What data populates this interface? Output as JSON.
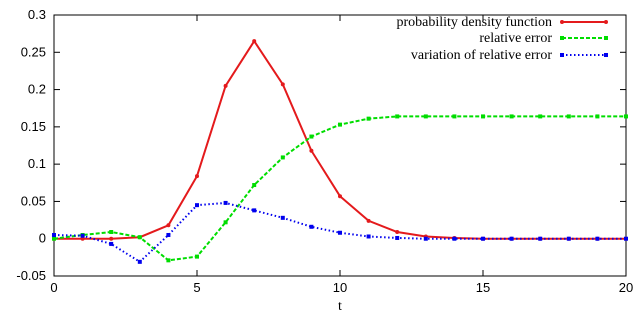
{
  "chart_data": {
    "type": "line",
    "xlabel": "t",
    "ylabel": "",
    "xlim": [
      0,
      20
    ],
    "ylim": [
      -0.05,
      0.3
    ],
    "x_ticks": [
      "0",
      "5",
      "10",
      "15",
      "20"
    ],
    "y_ticks": [
      "-0.05",
      "0",
      "0.05",
      "0.1",
      "0.15",
      "0.2",
      "0.25",
      "0.3"
    ],
    "x_tick_values": [
      0,
      5,
      10,
      15,
      20
    ],
    "y_tick_values": [
      -0.05,
      0,
      0.05,
      0.1,
      0.15,
      0.2,
      0.25,
      0.3
    ],
    "grid": false,
    "legend_position": "top-right",
    "x": [
      0,
      1,
      2,
      3,
      4,
      5,
      6,
      7,
      8,
      9,
      10,
      11,
      12,
      13,
      14,
      15,
      16,
      17,
      18,
      19,
      20
    ],
    "series": [
      {
        "name": "probability density function",
        "color": "#e41a1c",
        "dash": "solid",
        "marker": "dot",
        "values": [
          0.0,
          0.0,
          0.0,
          0.002,
          0.018,
          0.084,
          0.205,
          0.265,
          0.207,
          0.118,
          0.057,
          0.024,
          0.009,
          0.003,
          0.001,
          0.0,
          0.0,
          0.0,
          0.0,
          0.0,
          0.0
        ]
      },
      {
        "name": "relative error",
        "color": "#00dd00",
        "dash": "dashed",
        "marker": "square",
        "values": [
          0.0,
          0.005,
          0.009,
          0.002,
          -0.029,
          -0.024,
          0.022,
          0.072,
          0.109,
          0.137,
          0.153,
          0.161,
          0.164,
          0.164,
          0.164,
          0.164,
          0.164,
          0.164,
          0.164,
          0.164,
          0.164
        ]
      },
      {
        "name": "variation of relative error",
        "color": "#0000ee",
        "dash": "dotted",
        "marker": "square",
        "values": [
          0.005,
          0.004,
          -0.007,
          -0.031,
          0.005,
          0.045,
          0.048,
          0.038,
          0.028,
          0.016,
          0.008,
          0.003,
          0.001,
          0.0,
          0.0,
          0.0,
          0.0,
          0.0,
          0.0,
          0.0,
          0.0
        ]
      }
    ]
  }
}
